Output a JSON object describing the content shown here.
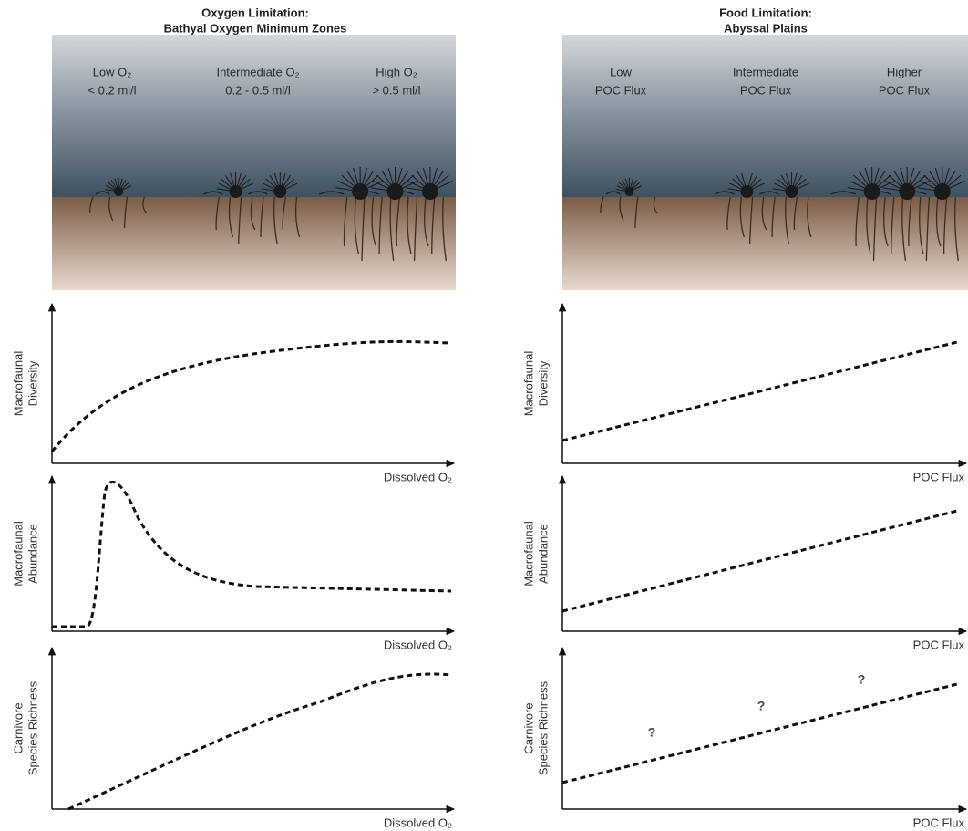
{
  "left": {
    "title": [
      "Oxygen Limitation:",
      "Bathyal Oxygen Minimum Zones"
    ],
    "zones": [
      {
        "line1": "Low O₂",
        "line2": "< 0.2 ml/l"
      },
      {
        "line1": "Intermediate O₂",
        "line2": "0.2 - 0.5 ml/l"
      },
      {
        "line1": "High O₂",
        "line2": "> 0.5 ml/l"
      }
    ],
    "plots": [
      {
        "y_label": [
          "Macrofaunal",
          "Diversity"
        ],
        "x_label": "Dissolved O₂"
      },
      {
        "y_label": [
          "Macrofaunal",
          "Abundance"
        ],
        "x_label": "Dissolved O₂"
      },
      {
        "y_label": [
          "Carnivore",
          "Species Richness"
        ],
        "x_label": "Dissolved O₂"
      }
    ]
  },
  "right": {
    "title": [
      "Food Limitation:",
      "Abyssal Plains"
    ],
    "zones": [
      {
        "line1": "Low",
        "line2": "POC Flux"
      },
      {
        "line1": "Intermediate",
        "line2": "POC Flux"
      },
      {
        "line1": "Higher",
        "line2": "POC Flux"
      }
    ],
    "plots": [
      {
        "y_label": [
          "Macrofaunal",
          "Diversity"
        ],
        "x_label": "POC Flux"
      },
      {
        "y_label": [
          "Macrofaunal",
          "Abundance"
        ],
        "x_label": "POC Flux"
      },
      {
        "y_label": [
          "Carnivore",
          "Species Richness"
        ],
        "x_label": "POC Flux",
        "annotations": [
          "?",
          "?",
          "?"
        ]
      }
    ]
  }
}
